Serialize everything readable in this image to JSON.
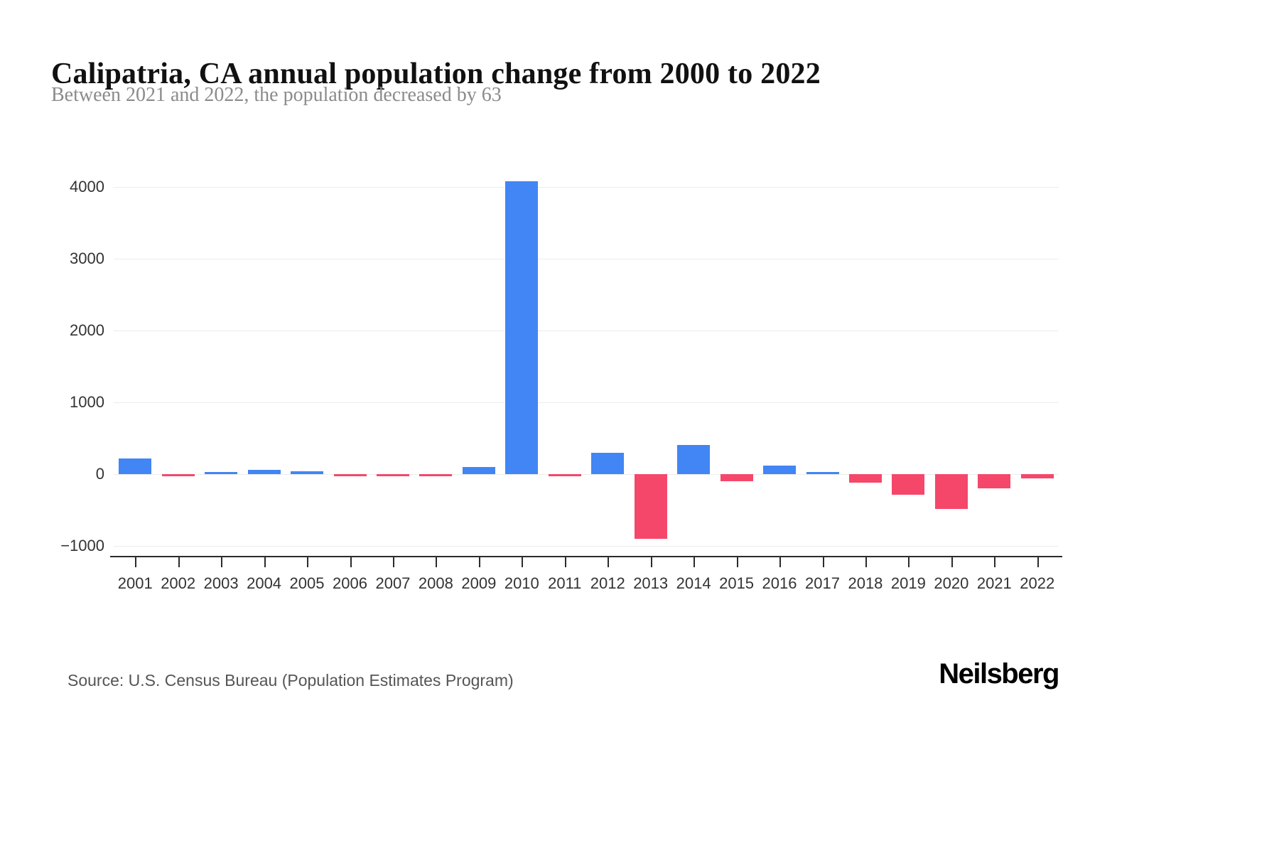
{
  "title": "Calipatria, CA annual population change from 2000 to 2022",
  "subtitle": "Between 2021 and 2022, the population decreased by 63",
  "source": "Source: U.S. Census Bureau (Population Estimates Program)",
  "brand": "Neilsberg",
  "colors": {
    "positive": "#4285f4",
    "negative": "#f5476a",
    "gridline": "#ececec",
    "axis": "#2b2b2b",
    "label": "#333333"
  },
  "chart_data": {
    "type": "bar",
    "title": "Calipatria, CA annual population change from 2000 to 2022",
    "subtitle": "Between 2021 and 2022, the population decreased by 63",
    "xlabel": "",
    "ylabel": "",
    "categories": [
      2001,
      2002,
      2003,
      2004,
      2005,
      2006,
      2007,
      2008,
      2009,
      2010,
      2011,
      2012,
      2013,
      2014,
      2015,
      2016,
      2017,
      2018,
      2019,
      2020,
      2021,
      2022
    ],
    "values": [
      220,
      -20,
      20,
      60,
      40,
      -30,
      -10,
      -20,
      100,
      4080,
      -10,
      300,
      -900,
      410,
      -100,
      115,
      25,
      -120,
      -290,
      -490,
      -200,
      -63
    ],
    "ylim": [
      -1000,
      4200
    ],
    "yticks": [
      -1000,
      0,
      1000,
      2000,
      3000,
      4000
    ],
    "grid": true,
    "legend": "none",
    "positive_color": "#4285f4",
    "negative_color": "#f5476a"
  }
}
